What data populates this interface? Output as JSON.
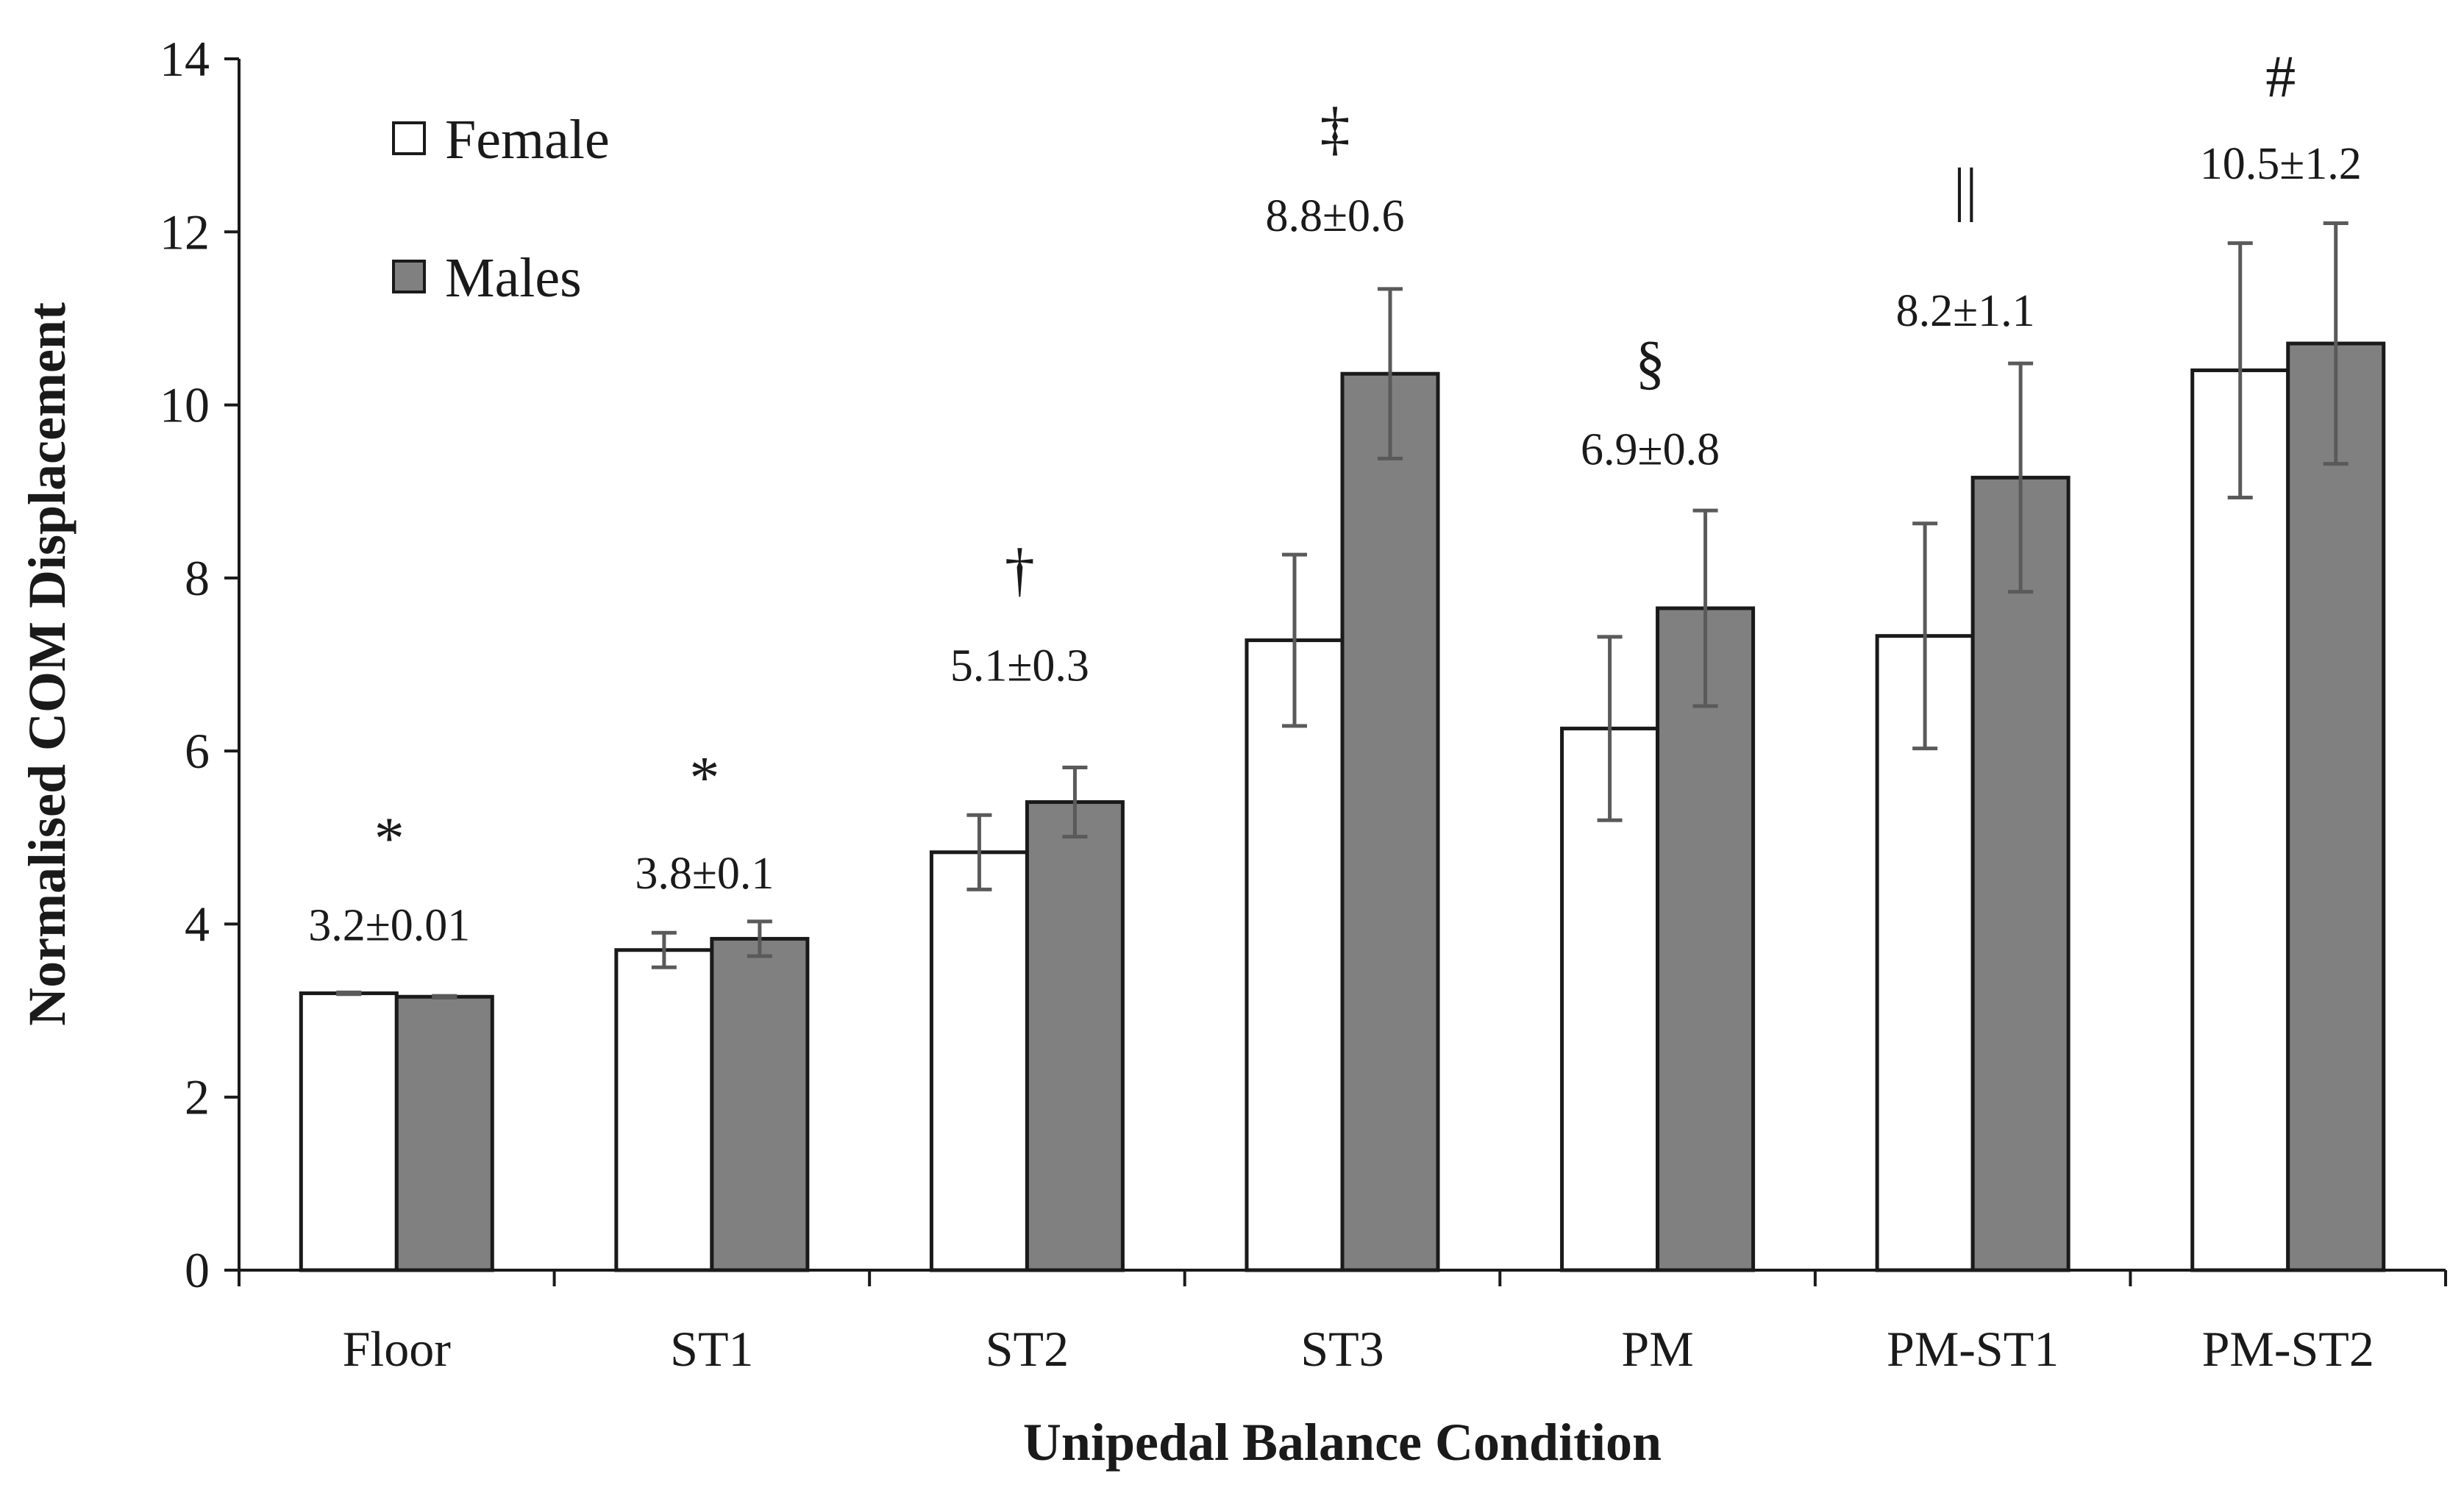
{
  "chart_data": {
    "type": "bar",
    "title": "",
    "xlabel": "Unipedal Balance Condition",
    "ylabel": "Normalised COM Displacement",
    "ylim": [
      0,
      14
    ],
    "yticks": [
      0,
      2,
      4,
      6,
      8,
      10,
      12,
      14
    ],
    "grid": false,
    "legend_position": "top-left",
    "categories": [
      "Floor",
      "ST1",
      "ST2",
      "ST3",
      "PM",
      "PM-ST1",
      "PM-ST2"
    ],
    "series": [
      {
        "name": "Female",
        "color": "#ffffff",
        "values": [
          3.2,
          3.7,
          4.83,
          7.28,
          6.26,
          7.33,
          10.4
        ],
        "errors": [
          0.01,
          0.2,
          0.43,
          0.99,
          1.06,
          1.3,
          1.47
        ]
      },
      {
        "name": "Males",
        "color": "#808080",
        "values": [
          3.16,
          3.83,
          5.41,
          10.36,
          7.65,
          9.16,
          10.71
        ],
        "errors": [
          0.01,
          0.2,
          0.4,
          0.98,
          1.13,
          1.32,
          1.39
        ]
      }
    ],
    "annotations": [
      {
        "category": "Floor",
        "mean_label": "3.2±0.01",
        "symbol": "*",
        "mean_y": 4.0,
        "symbol_y": 5.0
      },
      {
        "category": "ST1",
        "mean_label": "3.8±0.1",
        "symbol": "*",
        "mean_y": 4.6,
        "symbol_y": 5.7
      },
      {
        "category": "ST2",
        "mean_label": "5.1±0.3",
        "symbol": "†",
        "mean_y": 7.0,
        "symbol_y": 8.1
      },
      {
        "category": "ST3",
        "mean_label": "8.8±0.6",
        "symbol": "‡",
        "mean_y": 12.2,
        "symbol_y": 13.2
      },
      {
        "category": "PM",
        "mean_label": "6.9±0.8",
        "symbol": "§",
        "mean_y": 9.5,
        "symbol_y": 10.5
      },
      {
        "category": "PM-ST1",
        "mean_label": "8.2±1.1",
        "symbol": "||",
        "mean_y": 11.1,
        "symbol_y": 12.5
      },
      {
        "category": "PM-ST2",
        "mean_label": "10.5±1.2",
        "symbol": "#",
        "mean_y": 12.8,
        "symbol_y": 13.8
      }
    ]
  }
}
